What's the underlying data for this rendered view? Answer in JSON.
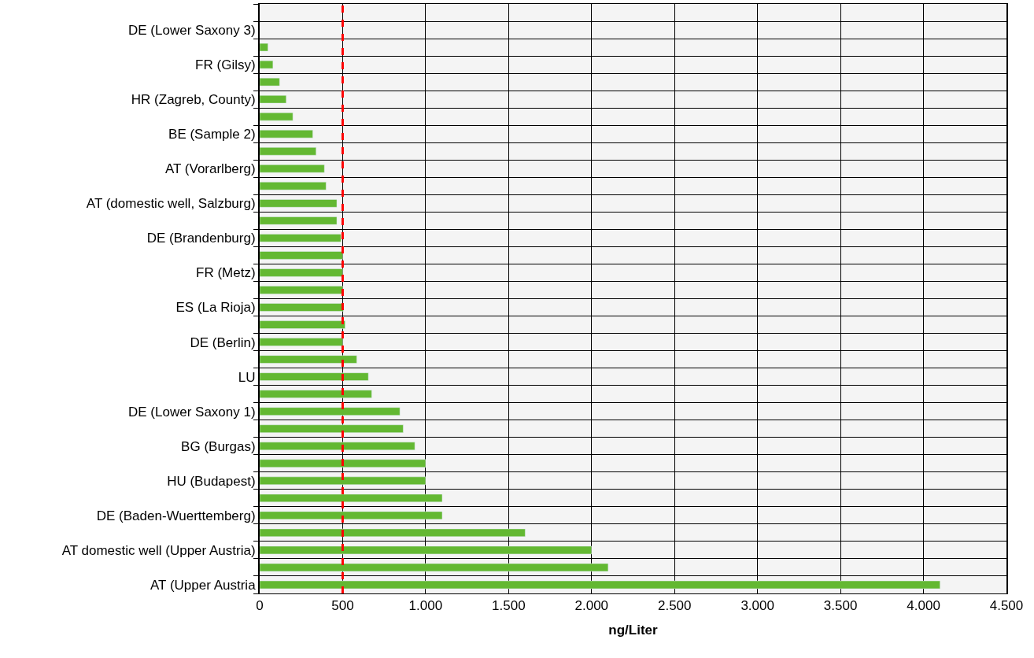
{
  "chart_data": {
    "type": "bar",
    "orientation": "horizontal",
    "xlabel": "ng/Liter",
    "categories": [
      null,
      "DE (Lower Saxony 3)",
      null,
      "FR (Gilsy)",
      null,
      "HR (Zagreb, County)",
      null,
      "BE (Sample 2)",
      null,
      "AT (Vorarlberg)",
      null,
      "AT (domestic well, Salzburg)",
      null,
      "DE (Brandenburg)",
      null,
      "FR (Metz)",
      null,
      "ES (La Rioja)",
      null,
      "DE (Berlin)",
      null,
      "LU",
      null,
      "DE (Lower Saxony 1)",
      null,
      "BG (Burgas)",
      null,
      "HU (Budapest)",
      null,
      "DE (Baden-Wuerttemberg)",
      null,
      "AT domestic well (Upper Austria)",
      null,
      "AT (Upper Austria"
    ],
    "values": [
      null,
      null,
      50,
      80,
      120,
      160,
      200,
      320,
      340,
      390,
      400,
      465,
      465,
      490,
      500,
      500,
      500,
      505,
      515,
      500,
      585,
      655,
      675,
      845,
      865,
      935,
      1000,
      1000,
      1100,
      1100,
      1600,
      2000,
      2100,
      4100
    ],
    "color": "#63b832",
    "xlim": [
      0,
      4500
    ],
    "xticks": [
      0,
      500,
      {
        "value": 1000,
        "label": "1.000"
      },
      {
        "value": 1500,
        "label": "1.500"
      },
      {
        "value": 2000,
        "label": "2.000"
      },
      {
        "value": 2500,
        "label": "2.500"
      },
      {
        "value": 3000,
        "label": "3.000"
      },
      {
        "value": 3500,
        "label": "3.500"
      },
      {
        "value": 4000,
        "label": "4.000"
      },
      {
        "value": 4500,
        "label": "4.500"
      }
    ],
    "ref_lines": [
      {
        "axis": "x",
        "value": 500,
        "color": "#ff0000",
        "line_style": "dashed"
      }
    ],
    "grid": true
  }
}
